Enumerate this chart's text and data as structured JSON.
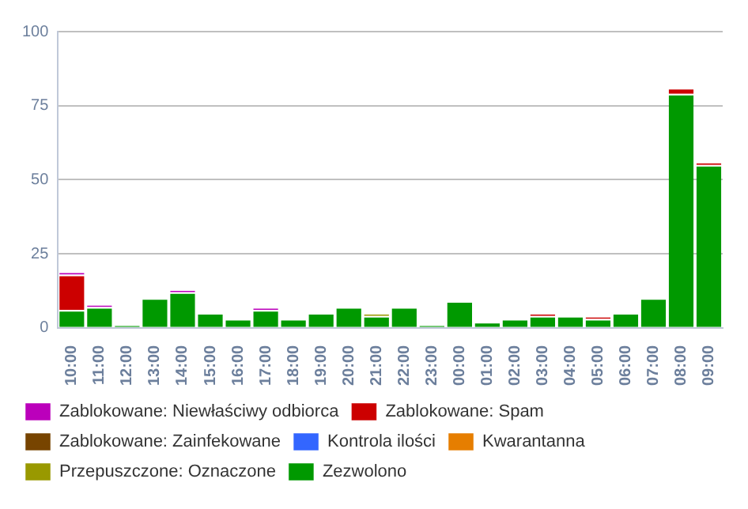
{
  "chart_data": {
    "type": "bar",
    "stacked": true,
    "categories": [
      "10:00",
      "11:00",
      "12:00",
      "13:00",
      "14:00",
      "15:00",
      "16:00",
      "17:00",
      "18:00",
      "19:00",
      "20:00",
      "21:00",
      "22:00",
      "23:00",
      "00:00",
      "01:00",
      "02:00",
      "03:00",
      "04:00",
      "05:00",
      "06:00",
      "07:00",
      "08:00",
      "09:00"
    ],
    "series": [
      {
        "name": "Zezwolono",
        "color": "#009900",
        "values": [
          6,
          7,
          1,
          10,
          12,
          5,
          3,
          6,
          3,
          5,
          7,
          4,
          7,
          1,
          9,
          2,
          3,
          4,
          4,
          3,
          5,
          10,
          79,
          55
        ]
      },
      {
        "name": "Przepuszczone: Oznaczone",
        "color": "#999900",
        "values": [
          0,
          0,
          0,
          0,
          0,
          0,
          0,
          0,
          0,
          0,
          0,
          1,
          0,
          0,
          0,
          0,
          0,
          0,
          0,
          0,
          0,
          0,
          0,
          0
        ]
      },
      {
        "name": "Kwarantanna",
        "color": "#e67e00",
        "values": [
          0,
          0,
          0,
          0,
          0,
          0,
          0,
          0,
          0,
          0,
          0,
          0,
          0,
          0,
          0,
          0,
          0,
          0,
          0,
          0,
          0,
          0,
          0,
          0
        ]
      },
      {
        "name": "Kontrola ilości",
        "color": "#3366ff",
        "values": [
          0,
          0,
          0,
          0,
          0,
          0,
          0,
          0,
          0,
          0,
          0,
          0,
          0,
          0,
          0,
          0,
          0,
          0,
          0,
          0,
          0,
          0,
          0,
          0
        ]
      },
      {
        "name": "Zablokowane: Zainfekowane",
        "color": "#774400",
        "values": [
          0,
          0,
          0,
          0,
          0,
          0,
          0,
          0,
          0,
          0,
          0,
          0,
          0,
          0,
          0,
          0,
          0,
          0,
          0,
          0,
          0,
          0,
          0,
          0
        ]
      },
      {
        "name": "Zablokowane: Spam",
        "color": "#cc0000",
        "values": [
          12,
          0,
          0,
          0,
          0,
          0,
          0,
          0,
          0,
          0,
          0,
          0,
          0,
          0,
          0,
          0,
          0,
          1,
          0,
          1,
          0,
          0,
          2,
          1
        ]
      },
      {
        "name": "Zablokowane: Niewłaściwy odbiorca",
        "color": "#bb00bb",
        "values": [
          1,
          1,
          0,
          0,
          1,
          0,
          0,
          1,
          0,
          0,
          0,
          0,
          0,
          0,
          0,
          0,
          0,
          0,
          0,
          0,
          0,
          0,
          0,
          0
        ]
      }
    ],
    "ylim": [
      0,
      100
    ],
    "yticks": [
      0,
      25,
      50,
      75,
      100
    ],
    "grid": "y",
    "legend": "bottom"
  }
}
